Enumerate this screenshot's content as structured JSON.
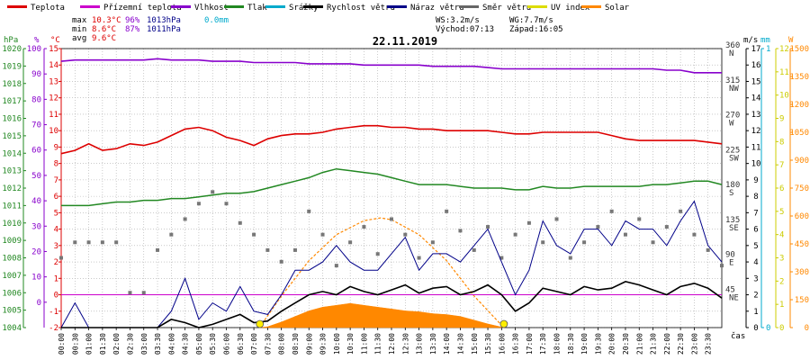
{
  "legend": [
    {
      "label": "Teplota",
      "color": "#dd0000"
    },
    {
      "label": "Přízemní teplota",
      "color": "#cc00cc"
    },
    {
      "label": "Vlhkost",
      "color": "#8800cc"
    },
    {
      "label": "Tlak",
      "color": "#228822"
    },
    {
      "label": "Srážky",
      "color": "#00aacc"
    },
    {
      "label": "Rychlost větru",
      "color": "#000000"
    },
    {
      "label": "Náraz větru",
      "color": "#000088"
    },
    {
      "label": "Směr větru",
      "color": "#666666"
    },
    {
      "label": "UV index",
      "color": "#dddd00"
    },
    {
      "label": "Solar",
      "color": "#ff8800"
    }
  ],
  "stats": {
    "max_label": "max",
    "max_temp": "10.3°C",
    "max_hum": "96%",
    "max_press": "1013hPa",
    "max_rain": "0.0mm",
    "min_label": "min",
    "min_temp": "8.6°C",
    "min_hum": "87%",
    "min_press": "1011hPa",
    "avg_label": "avg",
    "avg_temp": "9.6°C",
    "ws": "WS:3.2m/s",
    "wg": "WG:7.7m/s",
    "sunrise": "Východ:07:13",
    "sunset": "Západ:16:05"
  },
  "units": {
    "press": "hPa",
    "hum": "%",
    "temp": "°C",
    "speed": "m/s",
    "rain": "mm",
    "solar": "W",
    "xaxis": "čas"
  },
  "colors": {
    "temp": "#dd0000",
    "ground": "#cc00cc",
    "hum": "#8800cc",
    "press": "#228822",
    "wind": "#000000",
    "gust": "#000088",
    "dir": "#777777",
    "uv": "#dddd00",
    "solar": "#ff8800",
    "rain": "#00aacc",
    "grid": "#aaaaaa"
  },
  "chart_data": {
    "type": "line",
    "title": "22.11.2019",
    "x_range": [
      "00:00",
      "24:00"
    ],
    "x_ticks": [
      "00:00",
      "00:30",
      "01:00",
      "01:30",
      "02:00",
      "02:30",
      "03:00",
      "03:30",
      "04:00",
      "04:30",
      "05:00",
      "05:30",
      "06:00",
      "06:30",
      "07:00",
      "07:30",
      "08:00",
      "08:30",
      "09:00",
      "09:30",
      "10:00",
      "10:30",
      "11:00",
      "11:30",
      "12:00",
      "12:30",
      "13:00",
      "13:30",
      "14:00",
      "14:30",
      "15:00",
      "15:30",
      "16:00",
      "16:30",
      "17:00",
      "17:30",
      "18:00",
      "18:30",
      "19:00",
      "19:30",
      "20:00",
      "20:30",
      "21:00",
      "21:30",
      "22:00",
      "22:30",
      "23:00",
      "23:30"
    ],
    "axes": {
      "pressure_hPa": {
        "range": [
          1004,
          1020
        ],
        "ticks": [
          1004,
          1005,
          1006,
          1007,
          1008,
          1009,
          1010,
          1011,
          1012,
          1013,
          1014,
          1015,
          1016,
          1017,
          1018,
          1019,
          1020
        ]
      },
      "humidity_pct": {
        "range": [
          -10,
          100
        ],
        "ticks": [
          0,
          10,
          20,
          30,
          40,
          50,
          60,
          70,
          80,
          90,
          100
        ]
      },
      "temperature_C": {
        "range": [
          -2,
          15
        ],
        "ticks": [
          -2,
          -1,
          0,
          1,
          2,
          3,
          4,
          5,
          6,
          7,
          8,
          9,
          10,
          11,
          12,
          13,
          14,
          15
        ]
      },
      "direction": {
        "range": [
          0,
          360
        ],
        "ticks": [
          45,
          90,
          135,
          180,
          225,
          270,
          315,
          360
        ],
        "labels": [
          "NE",
          "E",
          "SE",
          "S",
          "SW",
          "W",
          "NW",
          "N"
        ]
      },
      "speed_ms": {
        "range": [
          0,
          17
        ],
        "ticks": [
          0,
          1,
          2,
          3,
          4,
          5,
          6,
          7,
          8,
          9,
          10,
          11,
          12,
          13,
          14,
          15,
          16,
          17
        ]
      },
      "rain_mm": {
        "range": [
          0,
          1
        ],
        "ticks": [
          0,
          1
        ]
      },
      "uv_index": {
        "range": [
          0,
          12
        ],
        "ticks": [
          0,
          1,
          2,
          3,
          4,
          5,
          6,
          7,
          8,
          9,
          10,
          11,
          12
        ]
      },
      "solar_W": {
        "range": [
          0,
          1500
        ],
        "ticks": [
          0,
          150,
          300,
          450,
          600,
          750,
          900,
          1050,
          1200,
          1350,
          1500
        ]
      }
    },
    "series": [
      {
        "name": "Teplota",
        "unit": "°C",
        "t": [
          0,
          0.5,
          1,
          1.5,
          2,
          2.5,
          3,
          3.5,
          4,
          4.5,
          5,
          5.5,
          6,
          6.5,
          7,
          7.5,
          8,
          8.5,
          9,
          9.5,
          10,
          10.5,
          11,
          11.5,
          12,
          12.5,
          13,
          13.5,
          14,
          14.5,
          15,
          15.5,
          16,
          16.5,
          17,
          17.5,
          18,
          18.5,
          19,
          19.5,
          20,
          20.5,
          21,
          21.5,
          22,
          22.5,
          23,
          23.5,
          24
        ],
        "values": [
          8.6,
          8.8,
          9.2,
          8.8,
          8.9,
          9.2,
          9.1,
          9.3,
          9.7,
          10.1,
          10.2,
          10.0,
          9.6,
          9.4,
          9.1,
          9.5,
          9.7,
          9.8,
          9.8,
          9.9,
          10.1,
          10.2,
          10.3,
          10.3,
          10.2,
          10.2,
          10.1,
          10.1,
          10.0,
          10.0,
          10.0,
          10.0,
          9.9,
          9.8,
          9.8,
          9.9,
          9.9,
          9.9,
          9.9,
          9.9,
          9.7,
          9.5,
          9.4,
          9.4,
          9.4,
          9.4,
          9.4,
          9.3,
          9.2
        ]
      },
      {
        "name": "Vlhkost",
        "unit": "%",
        "t": [
          0,
          0.5,
          1,
          1.5,
          2,
          2.5,
          3,
          3.5,
          4,
          4.5,
          5,
          5.5,
          6,
          6.5,
          7,
          7.5,
          8,
          8.5,
          9,
          9.5,
          10,
          10.5,
          11,
          11.5,
          12,
          12.5,
          13,
          13.5,
          14,
          14.5,
          15,
          15.5,
          16,
          16.5,
          17,
          17.5,
          18,
          18.5,
          19,
          19.5,
          20,
          20.5,
          21,
          21.5,
          22,
          22.5,
          23,
          23.5,
          24
        ],
        "values": [
          95,
          95.5,
          95.5,
          95.5,
          95.5,
          95.5,
          95.5,
          96,
          95.5,
          95.5,
          95.5,
          95,
          95,
          95,
          94.5,
          94.5,
          94.5,
          94.5,
          94,
          94,
          94,
          94,
          93.5,
          93.5,
          93.5,
          93.5,
          93.5,
          93,
          93,
          93,
          93,
          92.5,
          92,
          92,
          92,
          92,
          92,
          92,
          92,
          92,
          92,
          92,
          92,
          92,
          91.5,
          91.5,
          90.5,
          90.5,
          90.5
        ]
      },
      {
        "name": "Tlak",
        "unit": "hPa",
        "t": [
          0,
          0.5,
          1,
          1.5,
          2,
          2.5,
          3,
          3.5,
          4,
          4.5,
          5,
          5.5,
          6,
          6.5,
          7,
          7.5,
          8,
          8.5,
          9,
          9.5,
          10,
          10.5,
          11,
          11.5,
          12,
          12.5,
          13,
          13.5,
          14,
          14.5,
          15,
          15.5,
          16,
          16.5,
          17,
          17.5,
          18,
          18.5,
          19,
          19.5,
          20,
          20.5,
          21,
          21.5,
          22,
          22.5,
          23,
          23.5,
          24
        ],
        "values": [
          1011.0,
          1011.0,
          1011.0,
          1011.1,
          1011.2,
          1011.2,
          1011.3,
          1011.3,
          1011.4,
          1011.4,
          1011.5,
          1011.6,
          1011.7,
          1011.7,
          1011.8,
          1012.0,
          1012.2,
          1012.4,
          1012.6,
          1012.9,
          1013.1,
          1013.0,
          1012.9,
          1012.8,
          1012.6,
          1012.4,
          1012.2,
          1012.2,
          1012.2,
          1012.1,
          1012.0,
          1012.0,
          1012.0,
          1011.9,
          1011.9,
          1012.1,
          1012.0,
          1012.0,
          1012.1,
          1012.1,
          1012.1,
          1012.1,
          1012.1,
          1012.2,
          1012.2,
          1012.3,
          1012.4,
          1012.4,
          1012.2
        ]
      },
      {
        "name": "Přízemní teplota",
        "unit": "°C",
        "t": [
          0,
          24
        ],
        "values": [
          0,
          0
        ]
      },
      {
        "name": "Rychlost větru",
        "unit": "m/s",
        "t": [
          0,
          0.5,
          1,
          1.5,
          2,
          2.5,
          3,
          3.5,
          4,
          4.5,
          5,
          5.5,
          6,
          6.5,
          7,
          7.5,
          8,
          8.5,
          9,
          9.5,
          10,
          10.5,
          11,
          11.5,
          12,
          12.5,
          13,
          13.5,
          14,
          14.5,
          15,
          15.5,
          16,
          16.5,
          17,
          17.5,
          18,
          18.5,
          19,
          19.5,
          20,
          20.5,
          21,
          21.5,
          22,
          22.5,
          23,
          23.5,
          24
        ],
        "values": [
          0,
          0,
          0,
          0,
          0,
          0,
          0,
          0,
          0.5,
          0.3,
          0,
          0.2,
          0.5,
          0.8,
          0.3,
          0.4,
          1.0,
          1.5,
          2.0,
          2.2,
          2.0,
          2.5,
          2.2,
          2.0,
          2.3,
          2.6,
          2.1,
          2.4,
          2.5,
          2.0,
          2.2,
          2.6,
          2.0,
          1.0,
          1.5,
          2.4,
          2.2,
          2.0,
          2.5,
          2.3,
          2.4,
          2.8,
          2.6,
          2.3,
          2.0,
          2.5,
          2.7,
          2.4,
          1.8
        ]
      },
      {
        "name": "Náraz větru",
        "unit": "m/s",
        "t": [
          0,
          0.5,
          1,
          1.5,
          2,
          2.5,
          3,
          3.5,
          4,
          4.5,
          5,
          5.5,
          6,
          6.5,
          7,
          7.5,
          8,
          8.5,
          9,
          9.5,
          10,
          10.5,
          11,
          11.5,
          12,
          12.5,
          13,
          13.5,
          14,
          14.5,
          15,
          15.5,
          16,
          16.5,
          17,
          17.5,
          18,
          18.5,
          19,
          19.5,
          20,
          20.5,
          21,
          21.5,
          22,
          22.5,
          23,
          23.5,
          24
        ],
        "values": [
          0,
          1.5,
          0,
          0,
          0,
          0,
          0,
          0,
          1,
          3.0,
          0.5,
          1.5,
          1,
          2.5,
          1,
          0.8,
          2,
          3.5,
          3.5,
          4,
          5,
          4.0,
          3.5,
          3.5,
          4.5,
          5.5,
          3.5,
          4.5,
          4.5,
          4.0,
          5,
          6.0,
          4,
          2.0,
          3.5,
          6.5,
          5,
          4.5,
          6,
          6.0,
          5,
          6.5,
          6,
          6.0,
          5,
          6.5,
          7.7,
          5.0,
          4.0
        ]
      },
      {
        "name": "Směr větru",
        "unit": "°",
        "t": [
          0,
          0.5,
          1,
          1.5,
          2,
          2.5,
          3,
          3.5,
          4,
          4.5,
          5,
          5.5,
          6,
          6.5,
          7,
          7.5,
          8,
          8.5,
          9,
          9.5,
          10,
          10.5,
          11,
          11.5,
          12,
          12.5,
          13,
          13.5,
          14,
          14.5,
          15,
          15.5,
          16,
          16.5,
          17,
          17.5,
          18,
          18.5,
          19,
          19.5,
          20,
          20.5,
          21,
          21.5,
          22,
          22.5,
          23,
          23.5,
          24
        ],
        "values": [
          90,
          110,
          110,
          110,
          110,
          45,
          45,
          100,
          120,
          140,
          160,
          175,
          160,
          135,
          120,
          100,
          85,
          100,
          150,
          120,
          80,
          110,
          130,
          95,
          140,
          120,
          90,
          110,
          150,
          125,
          100,
          130,
          90,
          120,
          135,
          110,
          140,
          90,
          110,
          130,
          150,
          120,
          140,
          110,
          130,
          150,
          120,
          100,
          80
        ]
      },
      {
        "name": "Solar",
        "unit": "W",
        "t": [
          7.2,
          7.5,
          8,
          8.5,
          9,
          9.5,
          10,
          10.5,
          11,
          11.5,
          12,
          12.5,
          13,
          13.5,
          14,
          14.5,
          15,
          15.5,
          16.08
        ],
        "values": [
          0,
          5,
          30,
          60,
          90,
          110,
          120,
          130,
          120,
          110,
          100,
          90,
          85,
          75,
          70,
          60,
          40,
          20,
          0
        ]
      },
      {
        "name": "Solar (clear-sky)",
        "unit": "W",
        "t": [
          7.2,
          8,
          9,
          10,
          11,
          11.6,
          12,
          13,
          14,
          15,
          16.08
        ],
        "values": [
          0,
          170,
          360,
          500,
          575,
          590,
          580,
          500,
          360,
          170,
          0
        ]
      }
    ]
  }
}
